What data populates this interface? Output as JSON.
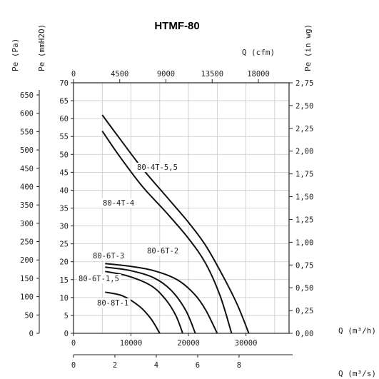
{
  "chart_data": {
    "type": "line",
    "title": "HTMF-80",
    "left_axes": {
      "pa_label": "Pe (Pa)",
      "mmh2o_label": "Pe (mmH2O)",
      "pa_ticks": [
        "650",
        "600",
        "550",
        "500",
        "450",
        "400",
        "350",
        "300",
        "250",
        "200",
        "150",
        "100",
        "50",
        "0"
      ],
      "mmh2o_ticks": [
        "70",
        "65",
        "60",
        "55",
        "50",
        "45",
        "40",
        "35",
        "30",
        "25",
        "20",
        "15",
        "10",
        "5",
        "0"
      ],
      "ylim_mmh2o": [
        0,
        70
      ]
    },
    "right_axis": {
      "label": "Pe (in wg)",
      "ticks": [
        "2,75",
        "2,50",
        "2,25",
        "2,00",
        "1,75",
        "1,50",
        "1,25",
        "1,00",
        "0,75",
        "0,50",
        "0,25",
        "0,00"
      ]
    },
    "top_axis": {
      "label": "Q (cfm)",
      "ticks": [
        "0",
        "4500",
        "9000",
        "13500",
        "18000"
      ]
    },
    "bottom_axes": {
      "m3h_label": "Q (m³/h)",
      "m3h_ticks": [
        "0",
        "10000",
        "20000",
        "30000"
      ],
      "xlim_m3h": [
        0,
        37500
      ],
      "m3s_label": "Q (m³/s)",
      "m3s_ticks": [
        "0",
        "2",
        "4",
        "6",
        "8"
      ]
    },
    "grid": true,
    "series": [
      {
        "name": "80-4T-5,5",
        "x": [
          5000,
          8000,
          12000,
          16000,
          20000,
          23000,
          26000,
          28500,
          30500
        ],
        "y": [
          61,
          54.5,
          46,
          38.5,
          31,
          24.5,
          16,
          8,
          0
        ]
      },
      {
        "name": "80-4T-4",
        "x": [
          5000,
          8000,
          12000,
          16000,
          20000,
          23000,
          25500,
          27500
        ],
        "y": [
          56.5,
          49.5,
          41,
          34,
          26.5,
          19.5,
          10.5,
          0
        ]
      },
      {
        "name": "80-6T-3",
        "x": [
          5500,
          10000,
          14000,
          18000,
          21000,
          23000,
          25000
        ],
        "y": [
          19.5,
          18.7,
          17.5,
          15,
          11,
          6.5,
          0
        ]
      },
      {
        "name": "80-6T-2",
        "x": [
          5500,
          10000,
          14000,
          17000,
          19500,
          21200
        ],
        "y": [
          18.5,
          17.5,
          15.5,
          12,
          6.5,
          0
        ]
      },
      {
        "name": "80-6T-1,5",
        "x": [
          5500,
          9500,
          13500,
          16000,
          17800,
          19000
        ],
        "y": [
          17.3,
          16,
          13.3,
          9.5,
          5,
          0
        ]
      },
      {
        "name": "80-8T-1",
        "x": [
          5500,
          8500,
          11500,
          13500,
          15000
        ],
        "y": [
          11.5,
          10.5,
          7.5,
          4,
          0
        ]
      }
    ]
  }
}
